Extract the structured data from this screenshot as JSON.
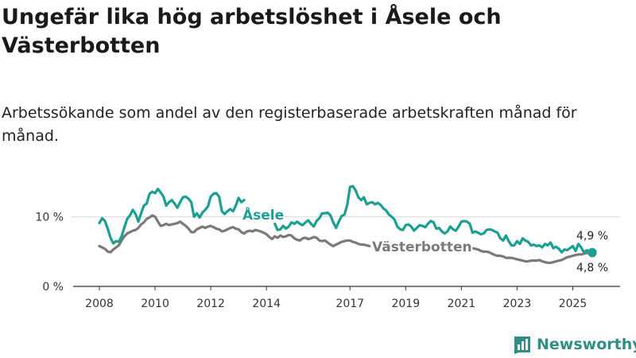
{
  "title": "Ungefär lika hög arbetslöshet i Åsele och Västerbotten",
  "subtitle": "Arbetssökande som andel av den registerbaserade arbetskraften månad för månad.",
  "brand": {
    "name": "Newsworthy",
    "color": "#2f8f86",
    "icon": "bar-chart-logo-icon"
  },
  "colors": {
    "asele": "#1a9f91",
    "vasterbotten": "#7a7a7a",
    "axis": "#333333",
    "grid": "#dddddd"
  },
  "chart_data": {
    "type": "line",
    "title": "Ungefär lika hög arbetslöshet i Åsele och Västerbotten",
    "ylabel": "",
    "xlabel": "",
    "ylim": [
      0,
      16
    ],
    "xlim": [
      2007.5,
      2026.5
    ],
    "y_ticks": [
      {
        "value": 0,
        "label": "0 %"
      },
      {
        "value": 10,
        "label": "10 %"
      }
    ],
    "x_ticks": [
      {
        "value": 2008,
        "label": "2008"
      },
      {
        "value": 2010,
        "label": "2010"
      },
      {
        "value": 2012,
        "label": "2012"
      },
      {
        "value": 2014,
        "label": "2014"
      },
      {
        "value": 2017,
        "label": "2017"
      },
      {
        "value": 2019,
        "label": "2019"
      },
      {
        "value": 2021,
        "label": "2021"
      },
      {
        "value": 2023,
        "label": "2023"
      },
      {
        "value": 2025,
        "label": "2025"
      }
    ],
    "series": [
      {
        "name": "Åsele",
        "key": "asele",
        "end_label": "4,9 %",
        "segments": [
          {
            "x": [
              2008.0,
              2008.1,
              2008.2,
              2008.3,
              2008.4,
              2008.5,
              2008.6,
              2008.7,
              2008.8,
              2008.9,
              2009.0,
              2009.1,
              2009.2,
              2009.3,
              2009.4,
              2009.5,
              2009.6,
              2009.7,
              2009.8,
              2009.9,
              2010.0,
              2010.1,
              2010.2,
              2010.3,
              2010.4,
              2010.5,
              2010.6,
              2010.7,
              2010.8,
              2010.9,
              2011.0,
              2011.1,
              2011.2,
              2011.3,
              2011.4,
              2011.5,
              2011.6,
              2011.7,
              2011.8,
              2011.9,
              2012.0,
              2012.1,
              2012.2,
              2012.3,
              2012.4,
              2012.5,
              2012.6,
              2012.7,
              2012.8,
              2012.9,
              2013.0,
              2013.1,
              2013.2
            ],
            "y": [
              9.1,
              9.8,
              9.4,
              8.3,
              7.0,
              6.2,
              6.5,
              6.4,
              7.2,
              8.5,
              9.7,
              10.2,
              11.0,
              10.4,
              9.3,
              10.5,
              11.6,
              11.9,
              13.3,
              13.6,
              13.4,
              14.0,
              13.5,
              12.9,
              11.6,
              12.1,
              12.4,
              11.9,
              11.3,
              12.1,
              12.8,
              12.9,
              12.6,
              12.1,
              10.0,
              10.5,
              9.9,
              10.6,
              11.0,
              11.5,
              12.9,
              13.3,
              13.4,
              12.9,
              10.8,
              10.4,
              10.8,
              11.1,
              10.8,
              11.6,
              12.7,
              12.1,
              12.4
            ]
          },
          {
            "x": [
              2014.3,
              2014.4,
              2014.5,
              2014.6,
              2014.7,
              2014.8,
              2014.9,
              2015.0,
              2015.1,
              2015.2,
              2015.3,
              2015.4,
              2015.5,
              2015.6,
              2015.7,
              2015.8,
              2015.9,
              2016.0,
              2016.1,
              2016.2,
              2016.3,
              2016.4,
              2016.5,
              2016.6,
              2016.7,
              2016.8,
              2016.9,
              2017.0,
              2017.1,
              2017.2,
              2017.3,
              2017.4,
              2017.5,
              2017.6,
              2017.7,
              2017.8,
              2017.9,
              2018.0,
              2018.1,
              2018.2,
              2018.3,
              2018.4,
              2018.5,
              2018.6,
              2018.7,
              2018.8,
              2018.9,
              2019.0,
              2019.1,
              2019.2,
              2019.3,
              2019.4,
              2019.5,
              2019.6,
              2019.7,
              2019.8,
              2019.9,
              2020.0,
              2020.1,
              2020.2,
              2020.3,
              2020.4,
              2020.5,
              2020.6,
              2020.7,
              2020.8,
              2020.9,
              2021.0,
              2021.1,
              2021.2,
              2021.3,
              2021.4,
              2021.5,
              2021.6,
              2021.7,
              2021.8,
              2021.9,
              2022.0,
              2022.1,
              2022.2,
              2022.3,
              2022.4,
              2022.5,
              2022.6,
              2022.7,
              2022.8,
              2022.9,
              2023.0,
              2023.1,
              2023.2,
              2023.3,
              2023.4,
              2023.5,
              2023.6,
              2023.7,
              2023.8,
              2023.9,
              2024.0,
              2024.1,
              2024.2,
              2024.3,
              2024.4,
              2024.5,
              2024.6,
              2024.7,
              2024.8,
              2024.9,
              2025.0,
              2025.1,
              2025.2,
              2025.3,
              2025.4,
              2025.5,
              2025.6,
              2025.7
            ],
            "y": [
              9.0,
              8.1,
              8.2,
              8.7,
              8.3,
              8.6,
              9.2,
              9.0,
              9.3,
              9.0,
              8.8,
              9.2,
              9.5,
              9.0,
              8.6,
              9.4,
              9.8,
              10.5,
              10.5,
              10.6,
              10.2,
              9.2,
              8.4,
              9.3,
              10.1,
              10.3,
              11.7,
              14.3,
              14.4,
              13.8,
              12.8,
              12.4,
              12.8,
              11.8,
              12.0,
              12.1,
              11.8,
              12.0,
              11.7,
              11.2,
              10.9,
              10.3,
              10.0,
              9.6,
              8.6,
              8.2,
              8.1,
              8.8,
              8.9,
              8.6,
              8.0,
              8.4,
              8.8,
              8.7,
              8.5,
              9.0,
              9.4,
              9.2,
              8.3,
              8.4,
              7.9,
              7.6,
              7.9,
              8.6,
              8.2,
              8.0,
              8.6,
              9.3,
              9.4,
              9.3,
              9.0,
              7.7,
              7.9,
              7.7,
              7.5,
              7.6,
              8.1,
              8.2,
              8.1,
              7.9,
              7.7,
              6.9,
              6.6,
              7.3,
              6.5,
              5.9,
              5.9,
              6.5,
              6.1,
              6.9,
              6.6,
              6.4,
              5.9,
              6.0,
              5.8,
              5.9,
              5.6,
              6.1,
              5.9,
              6.3,
              5.5,
              5.7,
              5.4,
              4.9,
              5.3,
              5.2,
              5.5,
              5.8,
              5.1,
              6.1,
              5.6,
              4.9,
              5.2,
              5.0,
              4.9
            ]
          }
        ]
      },
      {
        "name": "Västerbotten",
        "key": "vasterbotten",
        "end_label": "4,8 %",
        "segments": [
          {
            "x": [
              2008.0,
              2008.1,
              2008.2,
              2008.3,
              2008.4,
              2008.5,
              2008.6,
              2008.7,
              2008.8,
              2008.9,
              2009.0,
              2009.1,
              2009.2,
              2009.3,
              2009.4,
              2009.5,
              2009.6,
              2009.7,
              2009.8,
              2009.9,
              2010.0,
              2010.1,
              2010.2,
              2010.3,
              2010.4,
              2010.5,
              2010.6,
              2010.7,
              2010.8,
              2010.9,
              2011.0,
              2011.1,
              2011.2,
              2011.3,
              2011.4,
              2011.5,
              2011.6,
              2011.7,
              2011.8,
              2011.9,
              2012.0,
              2012.1,
              2012.2,
              2012.3,
              2012.4,
              2012.5,
              2012.6,
              2012.7,
              2012.8,
              2012.9,
              2013.0,
              2013.1,
              2013.2,
              2013.3,
              2013.4,
              2013.5,
              2013.6,
              2013.7,
              2013.8,
              2013.9,
              2014.0,
              2014.1,
              2014.2,
              2014.3,
              2014.4,
              2014.5,
              2014.6,
              2014.7,
              2014.8,
              2014.9,
              2015.0,
              2015.1,
              2015.2,
              2015.3,
              2015.4,
              2015.5,
              2015.6,
              2015.7,
              2015.8,
              2015.9,
              2016.0,
              2016.1,
              2016.2,
              2016.3,
              2016.4,
              2016.5,
              2016.6,
              2016.7,
              2016.8,
              2016.9,
              2017.0,
              2017.1,
              2017.2,
              2017.3,
              2017.4,
              2017.5,
              2017.6,
              2017.7
            ],
            "y": [
              5.8,
              5.6,
              5.4,
              5.0,
              4.9,
              5.3,
              5.6,
              5.9,
              6.6,
              7.2,
              7.6,
              7.8,
              8.0,
              8.1,
              8.4,
              8.9,
              9.2,
              9.7,
              9.9,
              10.2,
              10.0,
              9.3,
              8.7,
              8.8,
              9.0,
              8.8,
              8.9,
              9.0,
              9.1,
              9.3,
              9.0,
              8.7,
              8.3,
              7.8,
              7.8,
              8.2,
              8.4,
              8.6,
              8.4,
              8.6,
              8.7,
              8.5,
              8.3,
              8.2,
              7.9,
              8.0,
              8.2,
              8.4,
              8.5,
              8.3,
              8.2,
              7.8,
              7.6,
              7.9,
              8.0,
              7.9,
              8.1,
              8.0,
              7.9,
              7.7,
              7.5,
              7.1,
              6.8,
              7.2,
              7.0,
              7.3,
              7.1,
              7.2,
              7.4,
              7.3,
              6.9,
              6.7,
              6.6,
              6.9,
              7.0,
              6.8,
              6.9,
              7.1,
              7.0,
              6.6,
              6.5,
              6.6,
              6.3,
              6.0,
              5.8,
              6.0,
              6.2,
              6.4,
              6.5,
              6.6,
              6.6,
              6.4,
              6.3,
              6.1,
              6.0,
              6.0,
              5.9,
              5.8
            ]
          },
          {
            "x": [
              2021.3,
              2021.4,
              2021.5,
              2021.6,
              2021.7,
              2021.8,
              2021.9,
              2022.0,
              2022.1,
              2022.2,
              2022.3,
              2022.4,
              2022.5,
              2022.6,
              2022.7,
              2022.8,
              2022.9,
              2023.0,
              2023.1,
              2023.2,
              2023.3,
              2023.4,
              2023.5,
              2023.6,
              2023.7,
              2023.8,
              2023.9,
              2024.0,
              2024.1,
              2024.2,
              2024.3,
              2024.4,
              2024.5,
              2024.6,
              2024.7,
              2024.8,
              2024.9,
              2025.0,
              2025.1,
              2025.2,
              2025.3,
              2025.4,
              2025.5,
              2025.6,
              2025.7
            ],
            "y": [
              5.6,
              5.5,
              5.4,
              5.3,
              5.1,
              5.0,
              5.0,
              4.9,
              4.7,
              4.5,
              4.4,
              4.4,
              4.3,
              4.1,
              4.1,
              4.1,
              4.0,
              3.9,
              3.8,
              3.7,
              3.6,
              3.6,
              3.7,
              3.7,
              3.7,
              3.8,
              3.6,
              3.5,
              3.4,
              3.4,
              3.5,
              3.6,
              3.7,
              3.8,
              4.0,
              4.2,
              4.3,
              4.4,
              4.5,
              4.6,
              4.6,
              4.7,
              4.8,
              4.8,
              4.8
            ]
          }
        ]
      }
    ]
  }
}
